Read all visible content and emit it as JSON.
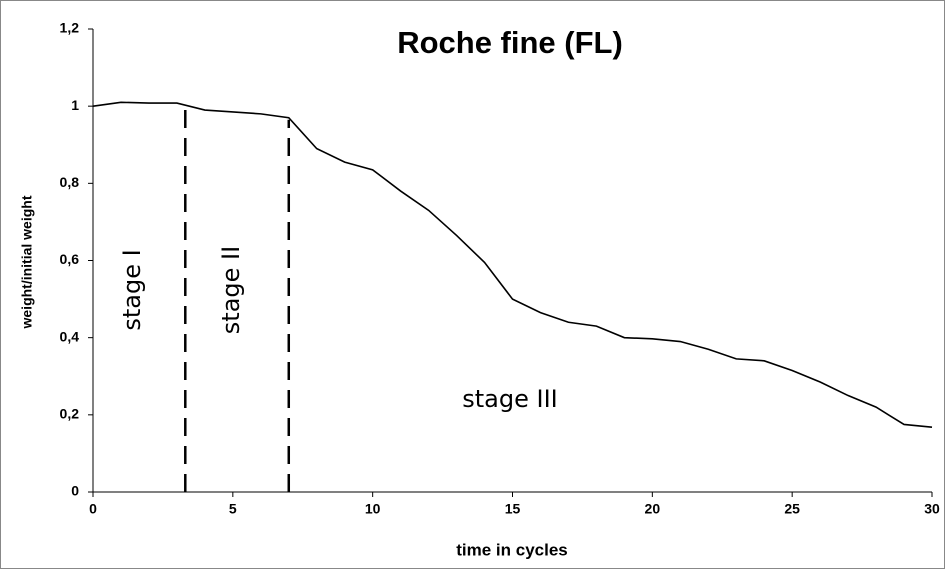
{
  "chart_data": {
    "type": "line",
    "title": "Roche fine (FL)",
    "x_label": "time in cycles",
    "y_label": "weight/initial weight",
    "x": [
      0,
      1,
      2,
      3,
      4,
      5,
      6,
      7,
      8,
      9,
      10,
      11,
      12,
      13,
      14,
      15,
      16,
      17,
      18,
      19,
      20,
      21,
      22,
      23,
      24,
      25,
      26,
      27,
      28,
      29,
      30
    ],
    "series": [
      {
        "name": "Roche fine (FL)",
        "color": "#000000",
        "values": [
          1.0,
          1.01,
          1.008,
          1.008,
          0.99,
          0.985,
          0.98,
          0.97,
          0.89,
          0.855,
          0.835,
          0.78,
          0.73,
          0.665,
          0.595,
          0.5,
          0.465,
          0.44,
          0.43,
          0.4,
          0.397,
          0.39,
          0.37,
          0.345,
          0.34,
          0.315,
          0.285,
          0.25,
          0.22,
          0.175,
          0.168
        ]
      }
    ],
    "xlim": [
      0,
      30
    ],
    "xticks": [
      0,
      5,
      10,
      15,
      20,
      25,
      30
    ],
    "ylim": [
      0,
      1.2
    ],
    "yticks": [
      0,
      {
        "value": 0.2,
        "label": "0,2"
      },
      {
        "value": 0.4,
        "label": "0,4"
      },
      {
        "value": 0.6,
        "label": "0,6"
      },
      {
        "value": 0.8,
        "label": "0,8"
      },
      1,
      {
        "value": 1.2,
        "label": "1,2"
      }
    ],
    "grid": false,
    "stage_boundaries": [
      3.3,
      7
    ],
    "annotations": [
      "stage I",
      "stage II",
      "stage III"
    ]
  }
}
